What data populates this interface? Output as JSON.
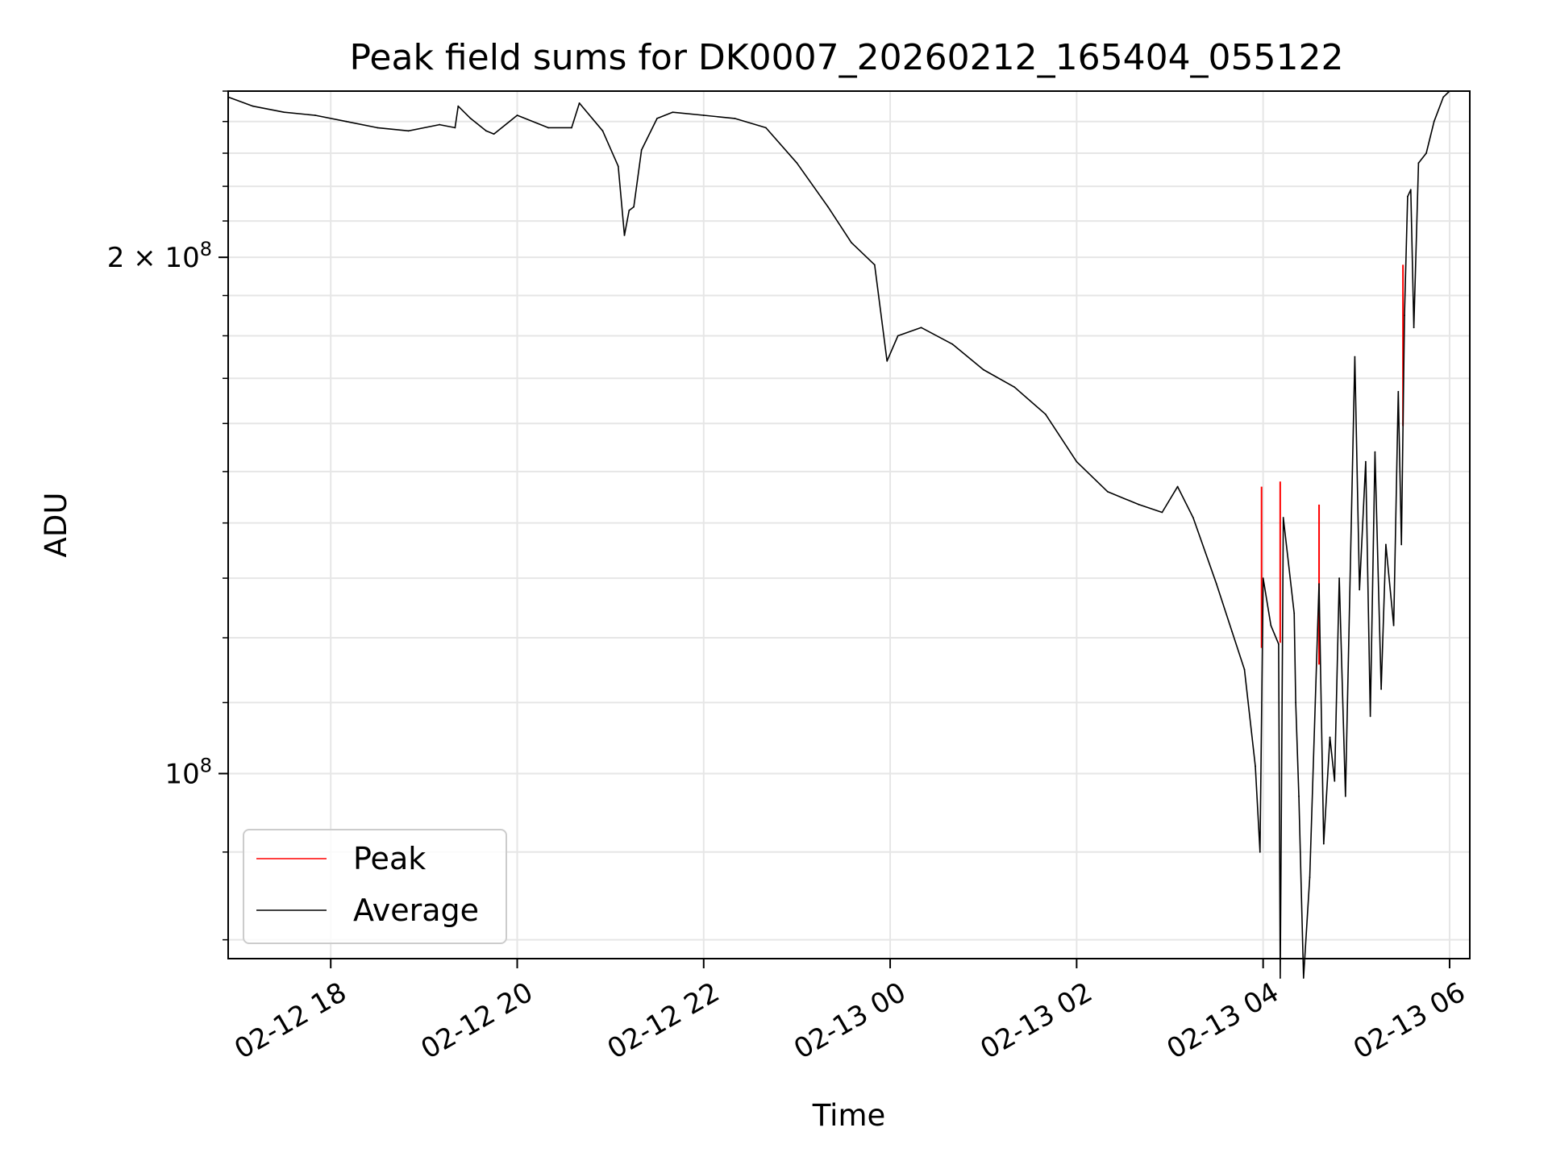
{
  "chart_data": {
    "type": "line",
    "title": "Peak field sums for DK0007_20260212_165404_055122",
    "xlabel": "Time",
    "ylabel": "ADU",
    "yscale": "log",
    "xlim": [
      "2026-02-12 16:54",
      "2026-02-13 06:13"
    ],
    "ylim": [
      78000000,
      250000000
    ],
    "grid": true,
    "legend": "lower-left",
    "x_ticks": [
      "02-12 18",
      "02-12 20",
      "02-12 22",
      "02-13 00",
      "02-13 02",
      "02-13 04",
      "02-13 06"
    ],
    "y_ticks": [
      {
        "value": 200000000,
        "mantissa": "2",
        "base": "10",
        "exp": "8"
      },
      {
        "value": 100000000,
        "mantissa": "",
        "base": "10",
        "exp": "8"
      }
    ],
    "series": [
      {
        "name": "Peak",
        "color": "#ff0000",
        "x": [
          "2026-02-13 03:59",
          "2026-02-13 04:11",
          "2026-02-13 04:36",
          "2026-02-13 05:30"
        ],
        "values": [
          147000000,
          148000000,
          143500000,
          198000000
        ]
      },
      {
        "name": "Average",
        "color": "#000000",
        "x": [
          "2026-02-12 16:54",
          "2026-02-12 17:10",
          "2026-02-12 17:30",
          "2026-02-12 17:50",
          "2026-02-12 18:10",
          "2026-02-12 18:30",
          "2026-02-12 18:50",
          "2026-02-12 19:10",
          "2026-02-12 19:20",
          "2026-02-12 19:22",
          "2026-02-12 19:30",
          "2026-02-12 19:40",
          "2026-02-12 19:45",
          "2026-02-12 20:00",
          "2026-02-12 20:20",
          "2026-02-12 20:35",
          "2026-02-12 20:40",
          "2026-02-12 20:55",
          "2026-02-12 21:05",
          "2026-02-12 21:09",
          "2026-02-12 21:12",
          "2026-02-12 21:15",
          "2026-02-12 21:20",
          "2026-02-12 21:30",
          "2026-02-12 21:40",
          "2026-02-12 22:00",
          "2026-02-12 22:20",
          "2026-02-12 22:40",
          "2026-02-12 23:00",
          "2026-02-12 23:20",
          "2026-02-12 23:35",
          "2026-02-12 23:50",
          "2026-02-12 23:58",
          "2026-02-13 00:05",
          "2026-02-13 00:20",
          "2026-02-13 00:40",
          "2026-02-13 01:00",
          "2026-02-13 01:20",
          "2026-02-13 01:40",
          "2026-02-13 02:00",
          "2026-02-13 02:20",
          "2026-02-13 02:40",
          "2026-02-13 02:55",
          "2026-02-13 03:05",
          "2026-02-13 03:15",
          "2026-02-13 03:30",
          "2026-02-13 03:40",
          "2026-02-13 03:48",
          "2026-02-13 03:55",
          "2026-02-13 03:58",
          "2026-02-13 04:00",
          "2026-02-13 04:05",
          "2026-02-13 04:10",
          "2026-02-13 04:11",
          "2026-02-13 04:13",
          "2026-02-13 04:20",
          "2026-02-13 04:21",
          "2026-02-13 04:23",
          "2026-02-13 04:26",
          "2026-02-13 04:30",
          "2026-02-13 04:36",
          "2026-02-13 04:39",
          "2026-02-13 04:43",
          "2026-02-13 04:46",
          "2026-02-13 04:49",
          "2026-02-13 04:53",
          "2026-02-13 04:59",
          "2026-02-13 05:02",
          "2026-02-13 05:06",
          "2026-02-13 05:09",
          "2026-02-13 05:12",
          "2026-02-13 05:16",
          "2026-02-13 05:19",
          "2026-02-13 05:24",
          "2026-02-13 05:27",
          "2026-02-13 05:29",
          "2026-02-13 05:31",
          "2026-02-13 05:33",
          "2026-02-13 05:35",
          "2026-02-13 05:37",
          "2026-02-13 05:40",
          "2026-02-13 05:45",
          "2026-02-13 05:50",
          "2026-02-13 05:56",
          "2026-02-13 06:00",
          "2026-02-13 06:13"
        ],
        "values": [
          248000000,
          245000000,
          243000000,
          242000000,
          240000000,
          238000000,
          237000000,
          239000000,
          238000000,
          245000000,
          241000000,
          237000000,
          236000000,
          242000000,
          238000000,
          238000000,
          246000000,
          237000000,
          226000000,
          206000000,
          213000000,
          214000000,
          231000000,
          241000000,
          243000000,
          242000000,
          241000000,
          238000000,
          227000000,
          214000000,
          204000000,
          198000000,
          174000000,
          180000000,
          182000000,
          178000000,
          172000000,
          168000000,
          162000000,
          152000000,
          146000000,
          143500000,
          142000000,
          147000000,
          141000000,
          129000000,
          121000000,
          115000000,
          101000000,
          90000000,
          130000000,
          122000000,
          119000000,
          76000000,
          141000000,
          124000000,
          110000000,
          97000000,
          76000000,
          87000000,
          129000000,
          91000000,
          105000000,
          99000000,
          130000000,
          97000000,
          175000000,
          128000000,
          152000000,
          108000000,
          154000000,
          112000000,
          136000000,
          122000000,
          167000000,
          136000000,
          185000000,
          217000000,
          219000000,
          182000000,
          227000000,
          230000000,
          240000000,
          248000000,
          250000000,
          250000000
        ]
      }
    ]
  }
}
